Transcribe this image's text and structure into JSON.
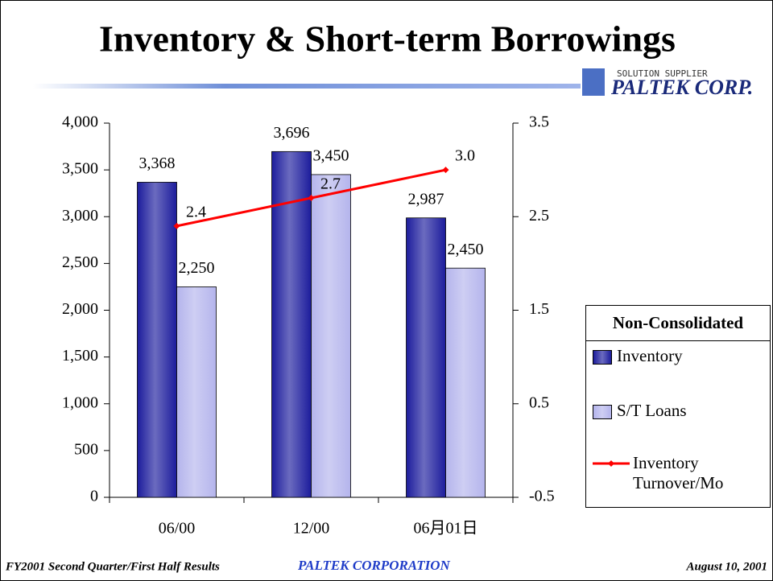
{
  "chart_data": {
    "type": "bar_line",
    "title": "Inventory & Short-term Borrowings",
    "categories": [
      "06/00",
      "12/00",
      "06月01日"
    ],
    "series": [
      {
        "name": "Inventory",
        "color": "#1c1c9c",
        "type": "bar",
        "values": [
          3368,
          3696,
          2987
        ],
        "value_labels": [
          "3,368",
          "3,696",
          "2,987"
        ]
      },
      {
        "name": "S/T Loans",
        "color": "#b4b4ec",
        "type": "bar",
        "values": [
          2250,
          3450,
          2450
        ],
        "value_labels": [
          "2,250",
          "3,450",
          "2,450"
        ]
      },
      {
        "name": "Inventory Turnover/Mo",
        "color": "#ff0000",
        "type": "line",
        "axis": "y2",
        "values": [
          2.4,
          2.7,
          3.0
        ],
        "value_labels": [
          "2.4",
          "2.7",
          "3.0"
        ]
      }
    ],
    "ylim": [
      0,
      4000
    ],
    "yticks": [
      0,
      500,
      {
        "value": 1000,
        "label": "1,000"
      },
      {
        "value": 1500,
        "label": "1,500"
      },
      {
        "value": 2000,
        "label": "2,000"
      },
      {
        "value": 2500,
        "label": "2,500"
      },
      {
        "value": 3000,
        "label": "3,000"
      },
      {
        "value": 3500,
        "label": "3,500"
      },
      {
        "value": 4000,
        "label": "4,000"
      }
    ],
    "y2lim": [
      -0.5,
      3.5
    ],
    "y2ticks": [
      -0.5,
      0.5,
      1.5,
      2.5,
      3.5
    ],
    "legend_title": "Non-Consolidated",
    "legend_position": "right",
    "grid": false
  },
  "slide": {
    "logo_tagline": "SOLUTION SUPPLIER",
    "logo_name": "PALTEK CORP.",
    "footer_left": "FY2001 Second Quarter/First Half Results",
    "footer_center": "PALTEK CORPORATION",
    "footer_right": "August 10, 2001"
  }
}
